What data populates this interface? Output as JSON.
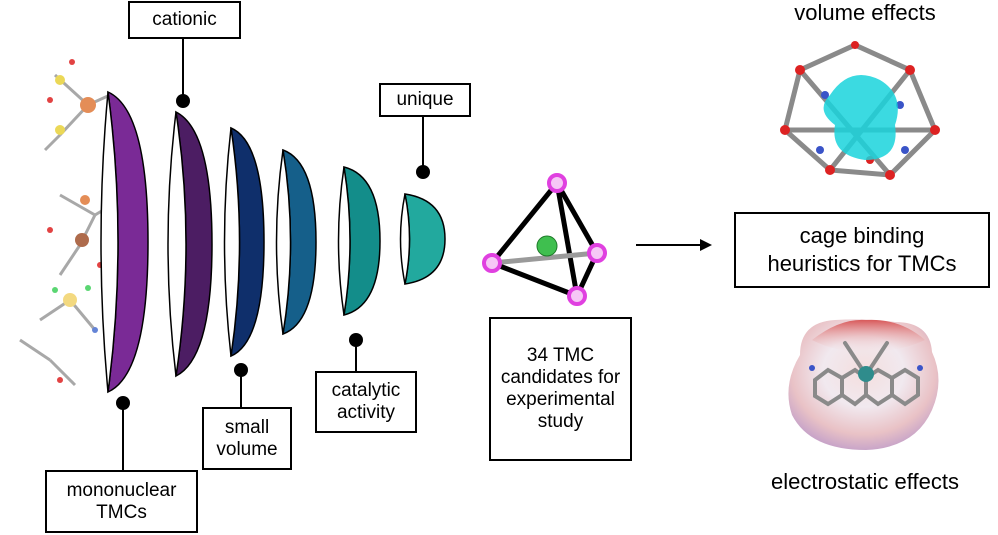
{
  "funnel": {
    "stages": [
      {
        "label": "mononuclear TMCs",
        "color": "#7a2a96"
      },
      {
        "label": "cationic",
        "color": "#4c1d63"
      },
      {
        "label": "small volume",
        "color": "#0f2f6b"
      },
      {
        "label": "",
        "color": "#155f8a"
      },
      {
        "label": "catalytic activity",
        "color": "#138d8a"
      },
      {
        "label": "unique",
        "color": "#22a99e"
      }
    ],
    "labels": {
      "mononuclear": "mononuclear TMCs",
      "cationic": "cationic",
      "small_volume": "small volume",
      "catalytic": "catalytic activity",
      "unique": "unique"
    }
  },
  "cage": {
    "caption": "34 TMC candidates for experimental study",
    "vertex_color": "#e040e0",
    "guest_color": "#3fbf4f"
  },
  "outcomes": {
    "volume_title": "volume effects",
    "heuristics": "cage binding heuristics for TMCs",
    "electrostatic_title": "electrostatic effects"
  }
}
